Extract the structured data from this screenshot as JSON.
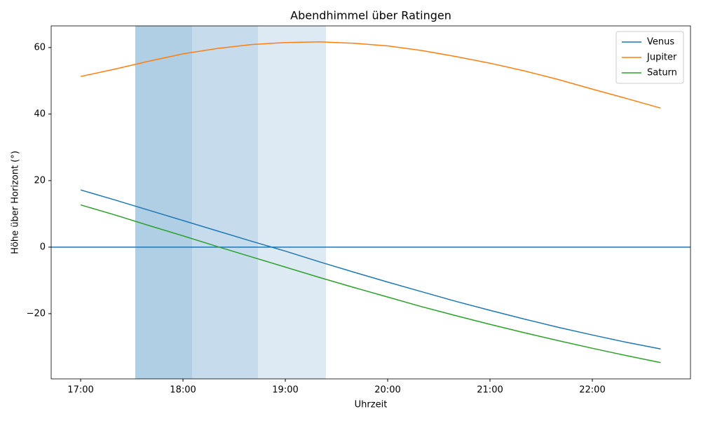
{
  "chart_data": {
    "type": "line",
    "title": "Abendhimmel über Ratingen",
    "xlabel": "Uhrzeit",
    "ylabel": "Höhe über Horizont (°)",
    "x": [
      17,
      17.333,
      17.667,
      18,
      18.333,
      18.667,
      19,
      19.333,
      19.667,
      20,
      20.333,
      20.667,
      21,
      21.333,
      21.667,
      22,
      22.333,
      22.667
    ],
    "series": [
      {
        "name": "Venus",
        "color": "#1f77b4",
        "values": [
          17.2,
          14.2,
          11.1,
          8.0,
          4.9,
          1.8,
          -1.2,
          -4.4,
          -7.5,
          -10.5,
          -13.4,
          -16.3,
          -19.0,
          -21.6,
          -24.1,
          -26.4,
          -28.6,
          -30.6
        ]
      },
      {
        "name": "Jupiter",
        "color": "#ff7f0e",
        "values": [
          51.3,
          53.5,
          55.9,
          58.1,
          59.7,
          60.9,
          61.5,
          61.7,
          61.3,
          60.5,
          59.1,
          57.3,
          55.3,
          53.0,
          50.4,
          47.5,
          44.7,
          41.8
        ]
      },
      {
        "name": "Saturn",
        "color": "#2ca02c",
        "values": [
          12.7,
          9.7,
          6.5,
          3.4,
          0.2,
          -2.9,
          -6.0,
          -9.1,
          -12.1,
          -15.0,
          -17.9,
          -20.6,
          -23.2,
          -25.7,
          -28.1,
          -30.4,
          -32.6,
          -34.7
        ]
      }
    ],
    "spans": [
      {
        "start": 17.534,
        "end": 18.089,
        "color": "#b0cfe4"
      },
      {
        "start": 18.089,
        "end": 18.733,
        "color": "#c6dbec"
      },
      {
        "start": 18.733,
        "end": 19.397,
        "color": "#dde9f3"
      }
    ],
    "hline": {
      "value": 0,
      "color": "#1f77b4"
    },
    "xlim": [
      16.712,
      22.959
    ],
    "ylim": [
      -39.6,
      66.5
    ],
    "xticks": [
      {
        "value": 17,
        "label": "17:00"
      },
      {
        "value": 18,
        "label": "18:00"
      },
      {
        "value": 19,
        "label": "19:00"
      },
      {
        "value": 20,
        "label": "20:00"
      },
      {
        "value": 21,
        "label": "21:00"
      },
      {
        "value": 22,
        "label": "22:00"
      }
    ],
    "yticks": [
      {
        "value": -20,
        "label": "−20"
      },
      0,
      20,
      40,
      60
    ],
    "legend": "upper right",
    "grid": false
  }
}
